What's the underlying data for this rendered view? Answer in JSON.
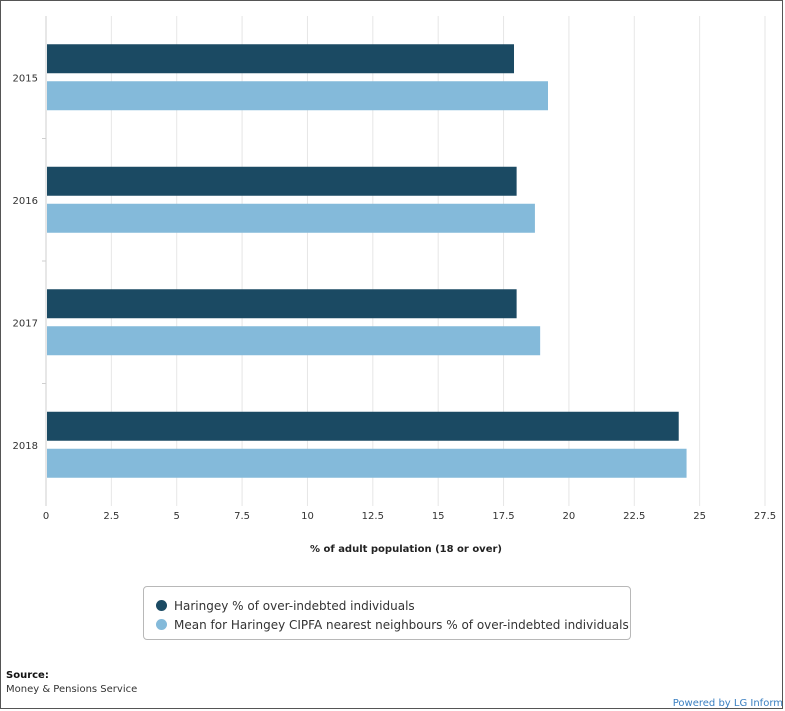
{
  "chart_data": {
    "type": "bar",
    "orientation": "horizontal",
    "categories": [
      "2015",
      "2016",
      "2017",
      "2018"
    ],
    "series": [
      {
        "name": "Haringey % of over-indebted individuals",
        "color": "#1b4a63",
        "values": [
          17.9,
          18.0,
          18.0,
          24.2
        ]
      },
      {
        "name": "Mean for Haringey CIPFA nearest neighbours % of over-indebted individuals",
        "color": "#84bada",
        "values": [
          19.2,
          18.7,
          18.9,
          24.5
        ]
      }
    ],
    "x_ticks": [
      "0",
      "2.5",
      "5",
      "7.5",
      "10",
      "12.5",
      "15",
      "17.5",
      "20",
      "22.5",
      "25",
      "27.5"
    ],
    "xlim": [
      0,
      27.5
    ],
    "xlabel": "% of adult population (18 or over)",
    "grid": true,
    "legend_position": "bottom"
  },
  "source": {
    "title": "Source:",
    "text": "Money & Pensions Service"
  },
  "footer": {
    "powered_by": "Powered by LG Inform"
  }
}
